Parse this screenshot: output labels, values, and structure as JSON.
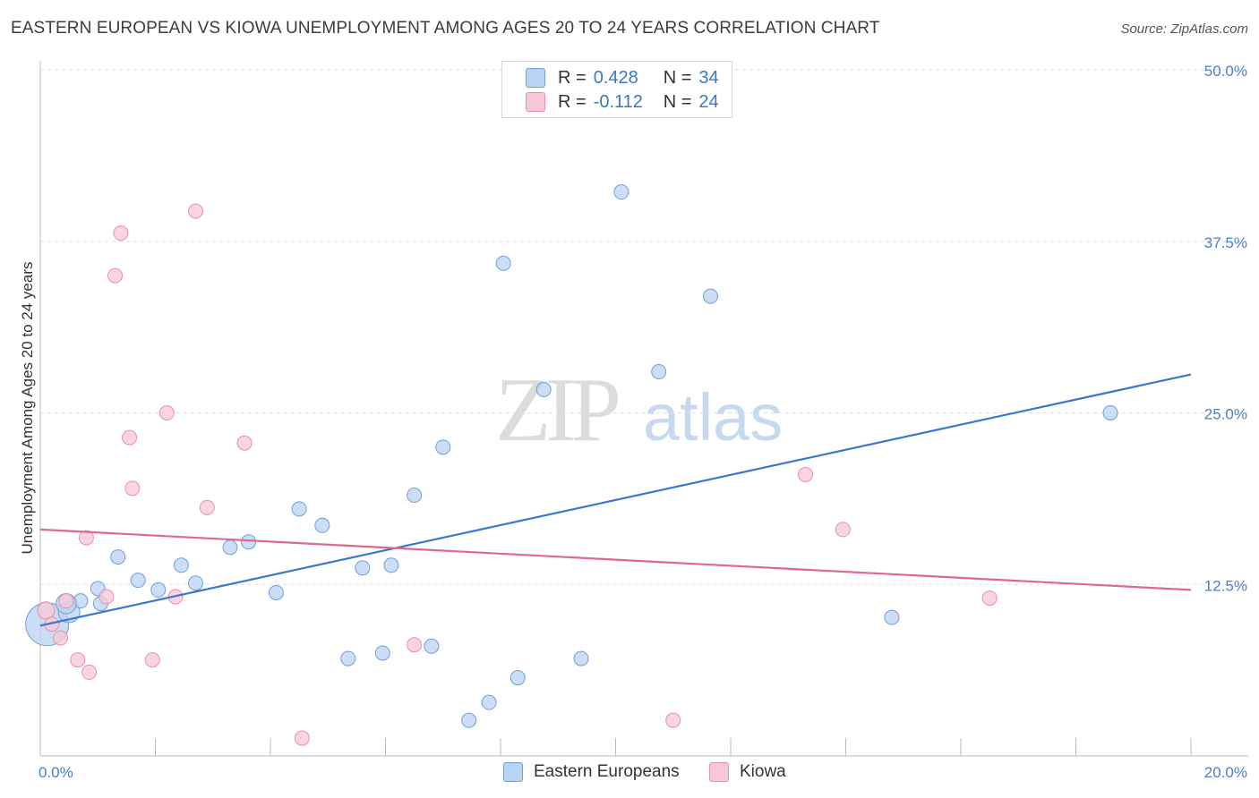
{
  "header": {
    "title": "EASTERN EUROPEAN VS KIOWA UNEMPLOYMENT AMONG AGES 20 TO 24 YEARS CORRELATION CHART",
    "source": "Source: ZipAtlas.com"
  },
  "watermark": {
    "zip": "ZIP",
    "atlas": "atlas"
  },
  "legend": {
    "r_label": "R =",
    "n_label": "N =",
    "rows": [
      {
        "r": "0.428",
        "n": "34"
      },
      {
        "r": "-0.112",
        "n": "24"
      }
    ]
  },
  "bottom_legend": [
    "Eastern Europeans",
    "Kiowa"
  ],
  "colors": {
    "blue_fill": "#b9d3f3",
    "blue_stroke": "#6f9fd8",
    "blue_line": "#3a77d1",
    "pink_fill": "#f8c7d6",
    "pink_stroke": "#e98fab",
    "pink_line": "#e0688f",
    "axis_text": "#4a7fc9",
    "grid": "#dddddd"
  },
  "chart_data": {
    "type": "scatter",
    "title": "EASTERN EUROPEAN VS KIOWA UNEMPLOYMENT AMONG AGES 20 TO 24 YEARS CORRELATION CHART",
    "xlabel": "",
    "ylabel": "Unemployment Among Ages 20 to 24 years",
    "xlim": [
      0,
      20
    ],
    "ylim": [
      0,
      50
    ],
    "x_tick_labels": [
      {
        "value": 0,
        "label": "0.0%"
      },
      {
        "value": 20,
        "label": "20.0%"
      }
    ],
    "y_tick_labels": [
      {
        "value": 12.5,
        "label": "12.5%"
      },
      {
        "value": 25,
        "label": "25.0%"
      },
      {
        "value": 37.5,
        "label": "37.5%"
      },
      {
        "value": 50,
        "label": "50.0%"
      }
    ],
    "series": [
      {
        "name": "Eastern Europeans",
        "r": 0.428,
        "n": 34,
        "trend": {
          "x": [
            0,
            20
          ],
          "y": [
            9.5,
            27.8
          ]
        },
        "points": [
          {
            "x": 0.12,
            "y": 9.6,
            "size": 3
          },
          {
            "x": 0.5,
            "y": 10.5,
            "size": 1.5
          },
          {
            "x": 0.7,
            "y": 11.3,
            "size": 1
          },
          {
            "x": 1.0,
            "y": 12.2,
            "size": 1
          },
          {
            "x": 1.35,
            "y": 14.5,
            "size": 1
          },
          {
            "x": 1.7,
            "y": 12.8,
            "size": 1
          },
          {
            "x": 2.05,
            "y": 12.1,
            "size": 1
          },
          {
            "x": 2.45,
            "y": 13.9,
            "size": 1
          },
          {
            "x": 2.7,
            "y": 12.6,
            "size": 1
          },
          {
            "x": 3.3,
            "y": 15.2,
            "size": 1
          },
          {
            "x": 3.62,
            "y": 15.6,
            "size": 1
          },
          {
            "x": 4.1,
            "y": 11.9,
            "size": 1
          },
          {
            "x": 4.5,
            "y": 18.0,
            "size": 1
          },
          {
            "x": 4.9,
            "y": 16.8,
            "size": 1
          },
          {
            "x": 5.35,
            "y": 7.1,
            "size": 1
          },
          {
            "x": 5.6,
            "y": 13.7,
            "size": 1
          },
          {
            "x": 5.95,
            "y": 7.5,
            "size": 1
          },
          {
            "x": 6.1,
            "y": 13.9,
            "size": 1
          },
          {
            "x": 6.5,
            "y": 19.0,
            "size": 1
          },
          {
            "x": 6.8,
            "y": 8.0,
            "size": 1
          },
          {
            "x": 7.0,
            "y": 22.5,
            "size": 1
          },
          {
            "x": 7.45,
            "y": 2.6,
            "size": 1
          },
          {
            "x": 7.8,
            "y": 3.9,
            "size": 1
          },
          {
            "x": 8.05,
            "y": 35.9,
            "size": 1
          },
          {
            "x": 8.3,
            "y": 5.7,
            "size": 1
          },
          {
            "x": 8.75,
            "y": 26.7,
            "size": 1
          },
          {
            "x": 9.4,
            "y": 7.1,
            "size": 1
          },
          {
            "x": 10.1,
            "y": 41.1,
            "size": 1
          },
          {
            "x": 10.75,
            "y": 28.0,
            "size": 1
          },
          {
            "x": 11.65,
            "y": 33.5,
            "size": 1
          },
          {
            "x": 14.8,
            "y": 10.1,
            "size": 1
          },
          {
            "x": 18.6,
            "y": 25.0,
            "size": 1
          },
          {
            "x": 0.45,
            "y": 11.1,
            "size": 1.4
          },
          {
            "x": 1.05,
            "y": 11.1,
            "size": 1
          }
        ]
      },
      {
        "name": "Kiowa",
        "r": -0.112,
        "n": 24,
        "trend": {
          "x": [
            0,
            20
          ],
          "y": [
            16.5,
            12.1
          ]
        },
        "points": [
          {
            "x": 0.1,
            "y": 10.6,
            "size": 1.2
          },
          {
            "x": 0.2,
            "y": 9.6,
            "size": 1
          },
          {
            "x": 0.35,
            "y": 8.6,
            "size": 1
          },
          {
            "x": 0.45,
            "y": 11.3,
            "size": 1
          },
          {
            "x": 0.65,
            "y": 7.0,
            "size": 1
          },
          {
            "x": 0.85,
            "y": 6.1,
            "size": 1
          },
          {
            "x": 0.8,
            "y": 15.9,
            "size": 1
          },
          {
            "x": 1.15,
            "y": 11.6,
            "size": 1
          },
          {
            "x": 1.3,
            "y": 35.0,
            "size": 1
          },
          {
            "x": 1.4,
            "y": 38.1,
            "size": 1
          },
          {
            "x": 1.55,
            "y": 23.2,
            "size": 1
          },
          {
            "x": 1.6,
            "y": 19.5,
            "size": 1
          },
          {
            "x": 1.95,
            "y": 7.0,
            "size": 1
          },
          {
            "x": 2.2,
            "y": 25.0,
            "size": 1
          },
          {
            "x": 2.35,
            "y": 11.6,
            "size": 1
          },
          {
            "x": 2.7,
            "y": 39.7,
            "size": 1
          },
          {
            "x": 2.9,
            "y": 18.1,
            "size": 1
          },
          {
            "x": 3.55,
            "y": 22.8,
            "size": 1
          },
          {
            "x": 4.55,
            "y": 1.3,
            "size": 1
          },
          {
            "x": 6.5,
            "y": 8.1,
            "size": 1
          },
          {
            "x": 11.0,
            "y": 2.6,
            "size": 1
          },
          {
            "x": 13.3,
            "y": 20.5,
            "size": 1
          },
          {
            "x": 13.95,
            "y": 16.5,
            "size": 1
          },
          {
            "x": 16.5,
            "y": 11.5,
            "size": 1
          }
        ]
      }
    ]
  }
}
